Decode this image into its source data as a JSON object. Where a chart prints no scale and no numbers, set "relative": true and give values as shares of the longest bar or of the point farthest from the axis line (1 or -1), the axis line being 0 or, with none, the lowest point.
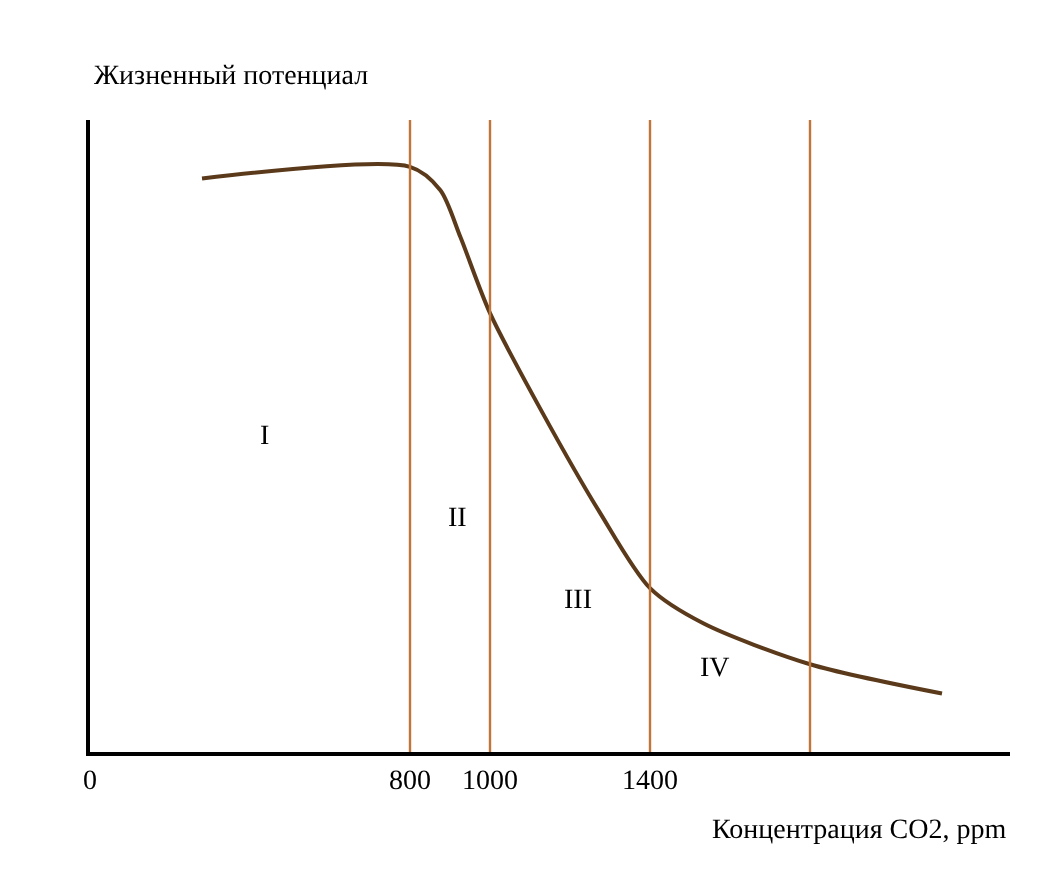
{
  "chart_data": {
    "type": "line",
    "relative": true,
    "xlabel": "Концентрация CO2, ppm",
    "ylabel": "Жизненный потенциал",
    "x": [
      280,
      800,
      876,
      926,
      1000,
      1131,
      1274,
      1400,
      1533,
      1800,
      2130
    ],
    "series": [
      {
        "color": "#5a3a1a",
        "values": [
          0.98,
          1.0,
          0.96,
          0.88,
          0.75,
          0.58,
          0.41,
          0.28,
          0.22,
          0.15,
          0.1
        ]
      }
    ],
    "xlim": [
      0,
      2300
    ],
    "xticks": [
      0,
      800,
      1000,
      1400
    ],
    "ref_lines": [
      {
        "axis": "x",
        "value": 800,
        "color": "#c0763a"
      },
      {
        "axis": "x",
        "value": 1000,
        "color": "#c0763a"
      },
      {
        "axis": "x",
        "value": 1400,
        "color": "#c0763a"
      },
      {
        "axis": "x",
        "value": 1800,
        "color": "#c0763a"
      }
    ],
    "annotations": [
      "I",
      "II",
      "III",
      "IV"
    ],
    "marker": "none",
    "line_style": "solid"
  }
}
